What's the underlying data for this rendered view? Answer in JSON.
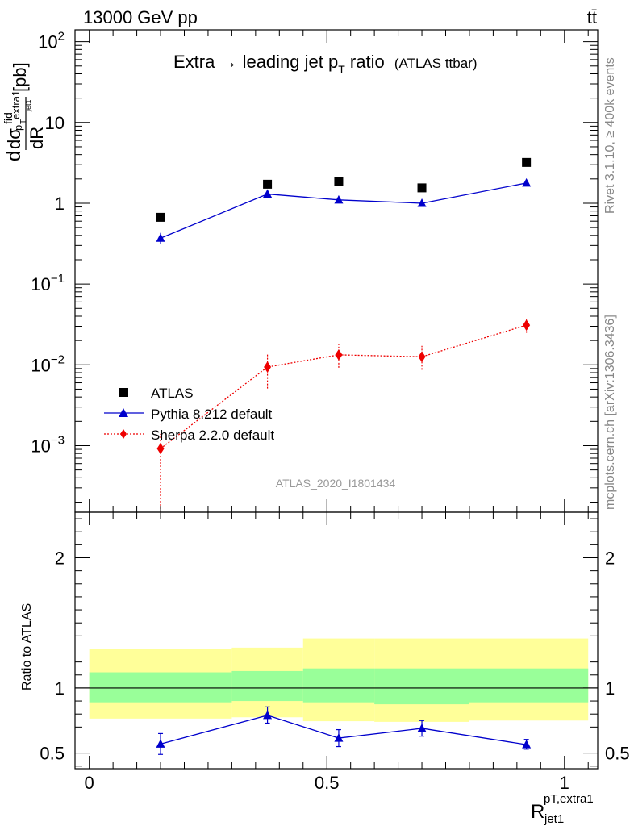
{
  "header": {
    "left": "13000 GeV pp",
    "right": "tt̄"
  },
  "side_labels": {
    "rivet": "Rivet 3.1.10, ≥ 400k events",
    "mcplots": "mcplots.cern.ch [arXiv:1306.3436]"
  },
  "chart_data": [
    {
      "type": "scatter",
      "panel": "main",
      "title_main": "Extra → leading jet p",
      "title_sub": "T",
      "title_main_tail": " ratio",
      "title_small": "(ATLAS ttbar)",
      "ylabel_parts": [
        "d",
        "dσ",
        "fid",
        "dR",
        "p",
        "T",
        "extra1",
        "jet1",
        "[pb]"
      ],
      "yscale": "log",
      "ylim": [
        0.00015,
        140
      ],
      "xlim": [
        -0.03,
        1.07
      ],
      "y_ticks": [
        {
          "v": 0.001,
          "base": "10",
          "exp": "−3"
        },
        {
          "v": 0.01,
          "base": "10",
          "exp": "−2"
        },
        {
          "v": 0.1,
          "base": "10",
          "exp": "−1"
        },
        {
          "v": 1,
          "base": "1",
          "exp": ""
        },
        {
          "v": 10,
          "base": "10",
          "exp": ""
        },
        {
          "v": 100,
          "base": "10",
          "exp": "2"
        }
      ],
      "watermark": "ATLAS_2020_I1801434",
      "legend_position": "lower-left",
      "series": [
        {
          "name": "ATLAS",
          "color": "#000000",
          "marker": "square",
          "x": [
            0.15,
            0.375,
            0.525,
            0.7,
            0.92
          ],
          "y": [
            0.67,
            1.72,
            1.88,
            1.55,
            3.2
          ]
        },
        {
          "name": "Pythia 8.212 default",
          "color": "#0000cc",
          "marker": "triangle",
          "line": "solid",
          "x": [
            0.15,
            0.375,
            0.525,
            0.7,
            0.92
          ],
          "y": [
            0.37,
            1.3,
            1.1,
            1.0,
            1.78
          ],
          "err_lo": [
            0.31,
            1.18,
            1.0,
            0.92,
            1.65
          ],
          "err_hi": [
            0.43,
            1.4,
            1.2,
            1.08,
            1.9
          ]
        },
        {
          "name": "Sherpa 2.2.0 default",
          "color": "#ee0000",
          "marker": "diamond",
          "line": "dotted",
          "x": [
            0.15,
            0.375,
            0.525,
            0.7,
            0.92
          ],
          "y": [
            0.00092,
            0.0094,
            0.0133,
            0.0126,
            0.031
          ],
          "err_lo": [
            0.00015,
            0.0051,
            0.0092,
            0.0087,
            0.025
          ],
          "err_hi": [
            0.0014,
            0.0138,
            0.0182,
            0.0172,
            0.037
          ]
        }
      ]
    },
    {
      "type": "scatter",
      "panel": "ratio",
      "ylabel": "Ratio to ATLAS",
      "xlabel_main": "R",
      "xlabel_sup": "pT,extra1",
      "xlabel_sub": "jet1",
      "ylim": [
        0.38,
        2.35
      ],
      "xlim": [
        -0.03,
        1.07
      ],
      "y_ticks": [
        0.5,
        1,
        2
      ],
      "y_tick_labels": [
        "0.5",
        "1",
        "2"
      ],
      "x_ticks": [
        0,
        0.5,
        1
      ],
      "x_tick_labels": [
        "0",
        "0.5",
        "1"
      ],
      "reference_line": 1,
      "bands": [
        {
          "x_lo": 0.0,
          "x_hi": 0.3,
          "stat_lo": 0.89,
          "stat_hi": 1.12,
          "tot_lo": 0.765,
          "tot_hi": 1.3
        },
        {
          "x_lo": 0.3,
          "x_hi": 0.45,
          "stat_lo": 0.9,
          "stat_hi": 1.13,
          "tot_lo": 0.775,
          "tot_hi": 1.31
        },
        {
          "x_lo": 0.45,
          "x_hi": 0.6,
          "stat_lo": 0.89,
          "stat_hi": 1.15,
          "tot_lo": 0.745,
          "tot_hi": 1.38
        },
        {
          "x_lo": 0.6,
          "x_hi": 0.8,
          "stat_lo": 0.875,
          "stat_hi": 1.15,
          "tot_lo": 0.74,
          "tot_hi": 1.38
        },
        {
          "x_lo": 0.8,
          "x_hi": 1.05,
          "stat_lo": 0.89,
          "stat_hi": 1.15,
          "tot_lo": 0.75,
          "tot_hi": 1.38
        }
      ],
      "stat_color": "#99ff99",
      "total_color": "#ffff99",
      "series": [
        {
          "name": "Pythia 8.212 default",
          "color": "#0000cc",
          "marker": "triangle",
          "x": [
            0.15,
            0.375,
            0.525,
            0.7,
            0.92
          ],
          "y": [
            0.57,
            0.79,
            0.615,
            0.69,
            0.565
          ],
          "err_lo": [
            0.49,
            0.73,
            0.55,
            0.63,
            0.53
          ],
          "err_hi": [
            0.65,
            0.855,
            0.68,
            0.75,
            0.605
          ]
        }
      ]
    }
  ]
}
